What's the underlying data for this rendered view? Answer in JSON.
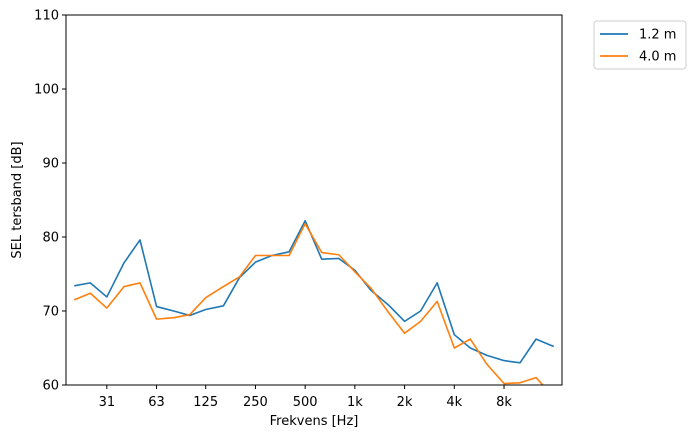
{
  "chart_data": {
    "type": "line",
    "xlabel": "Frekvens [Hz]",
    "ylabel": "SEL tersband [dB]",
    "ylim": [
      60,
      110
    ],
    "yticks": [
      60,
      70,
      80,
      90,
      100,
      110
    ],
    "x": [
      20,
      25,
      31.5,
      40,
      50,
      63,
      80,
      100,
      125,
      160,
      200,
      250,
      315,
      400,
      500,
      630,
      800,
      1000,
      1250,
      1600,
      2000,
      2500,
      3150,
      4000,
      5000,
      6300,
      8000,
      10000,
      12500,
      16000
    ],
    "xticks": [
      {
        "value": 31.5,
        "label": "31"
      },
      {
        "value": 63,
        "label": "63"
      },
      {
        "value": 125,
        "label": "125"
      },
      {
        "value": 250,
        "label": "250"
      },
      {
        "value": 500,
        "label": "500"
      },
      {
        "value": 1000,
        "label": "1k"
      },
      {
        "value": 2000,
        "label": "2k"
      },
      {
        "value": 4000,
        "label": "4k"
      },
      {
        "value": 8000,
        "label": "8k"
      }
    ],
    "xscale": "log",
    "grid": false,
    "legend_position": "outside-top-right",
    "series": [
      {
        "name": "1.2 m",
        "color": "#1f77b4",
        "values": [
          73.4,
          73.8,
          71.9,
          76.5,
          79.6,
          70.6,
          70.0,
          69.4,
          70.2,
          70.7,
          74.5,
          76.6,
          77.5,
          78.0,
          82.2,
          77.0,
          77.1,
          75.5,
          72.8,
          70.8,
          68.6,
          70.0,
          73.8,
          66.8,
          65.0,
          64.0,
          63.3,
          63.0,
          66.2,
          65.2
        ]
      },
      {
        "name": "4.0 m",
        "color": "#ff7f0e",
        "values": [
          71.5,
          72.4,
          70.4,
          73.3,
          73.8,
          68.9,
          69.1,
          69.5,
          71.8,
          73.3,
          74.6,
          77.5,
          77.5,
          77.5,
          81.8,
          77.9,
          77.6,
          75.3,
          73.1,
          69.8,
          67.0,
          68.6,
          71.3,
          65.0,
          66.2,
          62.8,
          60.2,
          60.3,
          61.0,
          58.4
        ]
      }
    ]
  }
}
